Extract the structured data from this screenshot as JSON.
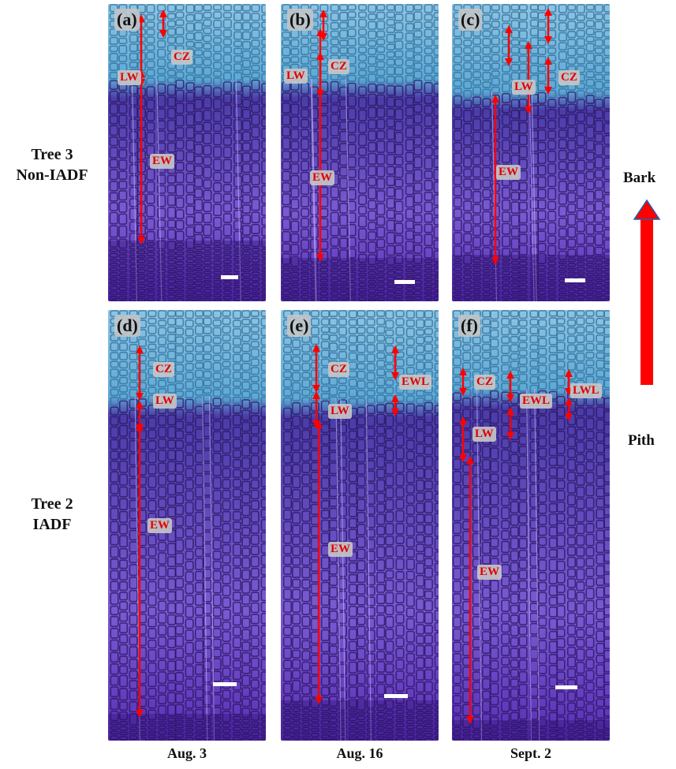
{
  "rows": [
    {
      "label_line1": "Tree 3",
      "label_line2": "Non-IADF"
    },
    {
      "label_line1": "Tree 2",
      "label_line2": "IADF"
    }
  ],
  "columns": [
    "Aug. 3",
    "Aug. 16",
    "Sept. 2"
  ],
  "panels": {
    "a": {
      "letter": "(a)",
      "tags": [
        "CZ",
        "LW",
        "EW"
      ]
    },
    "b": {
      "letter": "(b)",
      "tags": [
        "CZ",
        "LW",
        "EW"
      ]
    },
    "c": {
      "letter": "(c)",
      "tags": [
        "CZ",
        "LW",
        "EW"
      ]
    },
    "d": {
      "letter": "(d)",
      "tags": [
        "CZ",
        "LW",
        "EW"
      ]
    },
    "e": {
      "letter": "(e)",
      "tags": [
        "CZ",
        "EWL",
        "LW",
        "EW"
      ]
    },
    "f": {
      "letter": "(f)",
      "tags": [
        "CZ",
        "EWL",
        "LWL",
        "LW",
        "EW"
      ]
    }
  },
  "direction": {
    "top": "Bark",
    "bottom": "Pith"
  },
  "colors": {
    "cambial_blue": "#5fa9d6",
    "wood_purple": "#5a2fb5",
    "cell_wall": "#2a1560",
    "annotation_red": "#e00000",
    "arrow_red": "#ff0000"
  }
}
